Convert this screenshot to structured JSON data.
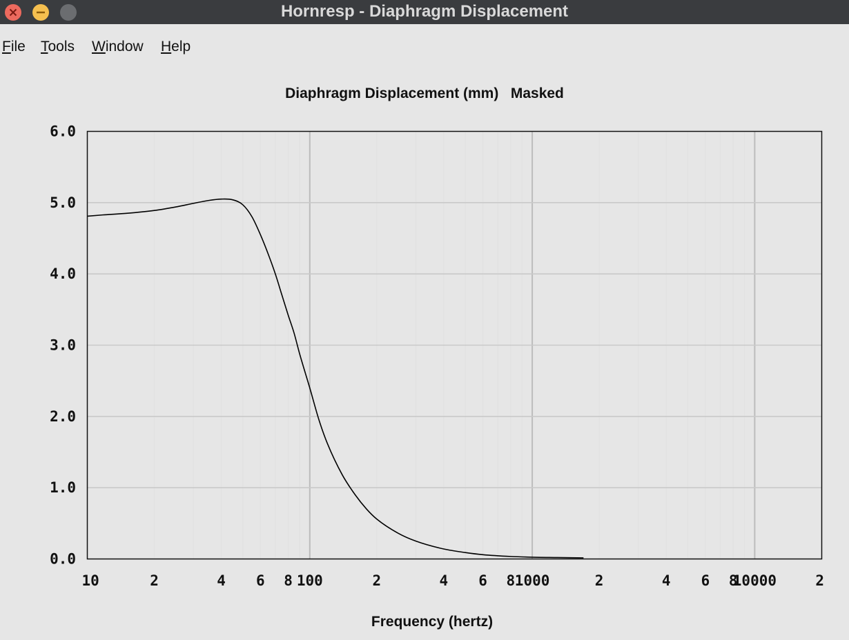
{
  "window": {
    "title": "Hornresp - Diaphragm Displacement",
    "controls": [
      "close",
      "minimize",
      "maximize"
    ]
  },
  "menu": {
    "items": [
      {
        "label": "File",
        "accel": "F",
        "rest": "ile"
      },
      {
        "label": "Tools",
        "accel": "T",
        "rest": "ools"
      },
      {
        "label": "Window",
        "accel": "W",
        "rest": "indow"
      },
      {
        "label": "Help",
        "accel": "H",
        "rest": "elp"
      }
    ]
  },
  "chart_data": {
    "type": "line",
    "title": "Diaphragm Displacement (mm)   Masked",
    "xlabel": "Frequency (hertz)",
    "ylabel": "",
    "x_scale": "log",
    "xlim": [
      10,
      20000
    ],
    "ylim": [
      0,
      6
    ],
    "grid": true,
    "y_ticks": [
      "0.0",
      "1.0",
      "2.0",
      "3.0",
      "4.0",
      "5.0",
      "6.0"
    ],
    "x_tick_labels": [
      {
        "value": 10,
        "label": "10"
      },
      {
        "value": 20,
        "label": "2"
      },
      {
        "value": 40,
        "label": "4"
      },
      {
        "value": 60,
        "label": "6"
      },
      {
        "value": 80,
        "label": "8"
      },
      {
        "value": 100,
        "label": "100"
      },
      {
        "value": 200,
        "label": "2"
      },
      {
        "value": 400,
        "label": "4"
      },
      {
        "value": 600,
        "label": "6"
      },
      {
        "value": 800,
        "label": "8"
      },
      {
        "value": 1000,
        "label": "1000"
      },
      {
        "value": 2000,
        "label": "2"
      },
      {
        "value": 4000,
        "label": "4"
      },
      {
        "value": 6000,
        "label": "6"
      },
      {
        "value": 8000,
        "label": "8"
      },
      {
        "value": 10000,
        "label": "10000"
      },
      {
        "value": 20000,
        "label": "2"
      }
    ],
    "series": [
      {
        "x": [
          10,
          12,
          15,
          20,
          25,
          30,
          35,
          40,
          45,
          50,
          55,
          60,
          65,
          70,
          75,
          80,
          85,
          90,
          100,
          110,
          120,
          140,
          160,
          180,
          200,
          250,
          300,
          400,
          500,
          600,
          800,
          1000,
          1300,
          1700
        ],
        "y": [
          4.81,
          4.83,
          4.85,
          4.89,
          4.94,
          4.99,
          5.03,
          5.05,
          5.04,
          4.97,
          4.8,
          4.55,
          4.28,
          4.0,
          3.7,
          3.42,
          3.17,
          2.88,
          2.4,
          1.95,
          1.62,
          1.18,
          0.9,
          0.7,
          0.56,
          0.36,
          0.25,
          0.14,
          0.09,
          0.06,
          0.035,
          0.025,
          0.02,
          0.015
        ]
      }
    ]
  }
}
